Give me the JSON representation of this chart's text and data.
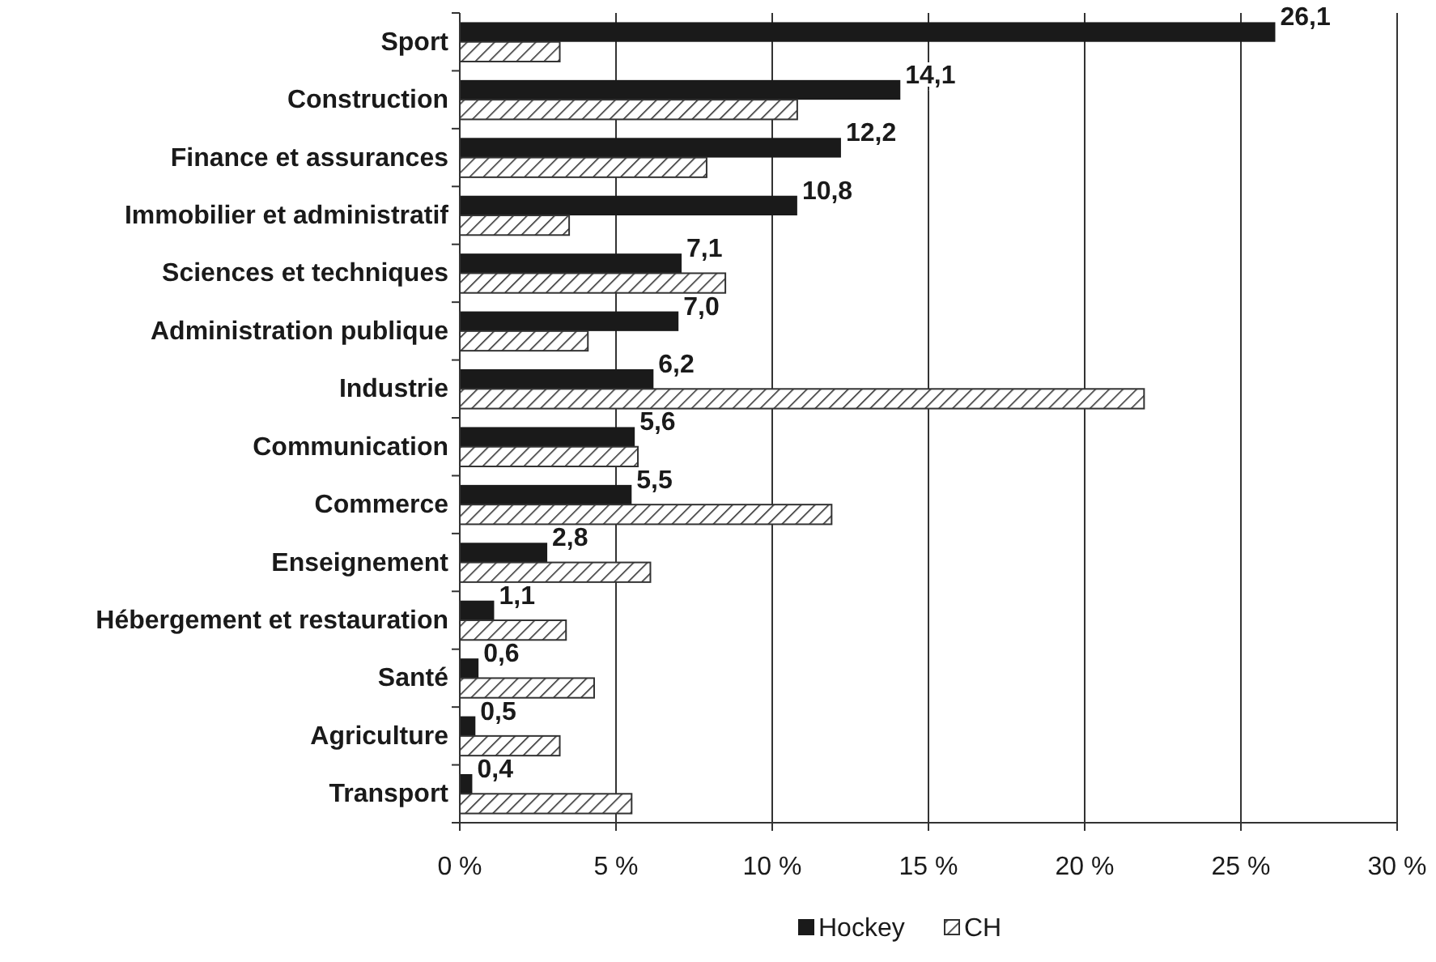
{
  "chart_data": {
    "type": "bar",
    "orientation": "horizontal",
    "categories": [
      "Sport",
      "Construction",
      "Finance et assurances",
      "Immobilier et administratif",
      "Sciences et techniques",
      "Administration publique",
      "Industrie",
      "Communication",
      "Commerce",
      "Enseignement",
      "Hébergement et restauration",
      "Santé",
      "Agriculture",
      "Transport"
    ],
    "series": [
      {
        "name": "Hockey",
        "color": "#1a1a1a",
        "values": [
          26.1,
          14.1,
          12.2,
          10.8,
          7.1,
          7.0,
          6.2,
          5.6,
          5.5,
          2.8,
          1.1,
          0.6,
          0.5,
          0.4
        ],
        "value_labels": [
          "26,1",
          "14,1",
          "12,2",
          "10,8",
          "7,1",
          "7,0",
          "6,2",
          "5,6",
          "5,5",
          "2,8",
          "1,1",
          "0,6",
          "0,5",
          "0,4"
        ]
      },
      {
        "name": "CH",
        "color": "#333333",
        "values": [
          3.2,
          10.8,
          7.9,
          3.5,
          8.5,
          4.1,
          21.9,
          5.7,
          11.9,
          6.1,
          3.4,
          4.3,
          3.2,
          5.5
        ]
      }
    ],
    "xlim": [
      0,
      30
    ],
    "xticks": [
      {
        "value": 0,
        "label": "0 %"
      },
      {
        "value": 5,
        "label": "5 %"
      },
      {
        "value": 10,
        "label": "10 %"
      },
      {
        "value": 15,
        "label": "15 %"
      },
      {
        "value": 20,
        "label": "20 %"
      },
      {
        "value": 25,
        "label": "25 %"
      },
      {
        "value": 30,
        "label": "30 %"
      }
    ],
    "grid": "x",
    "legend": "bottom"
  }
}
